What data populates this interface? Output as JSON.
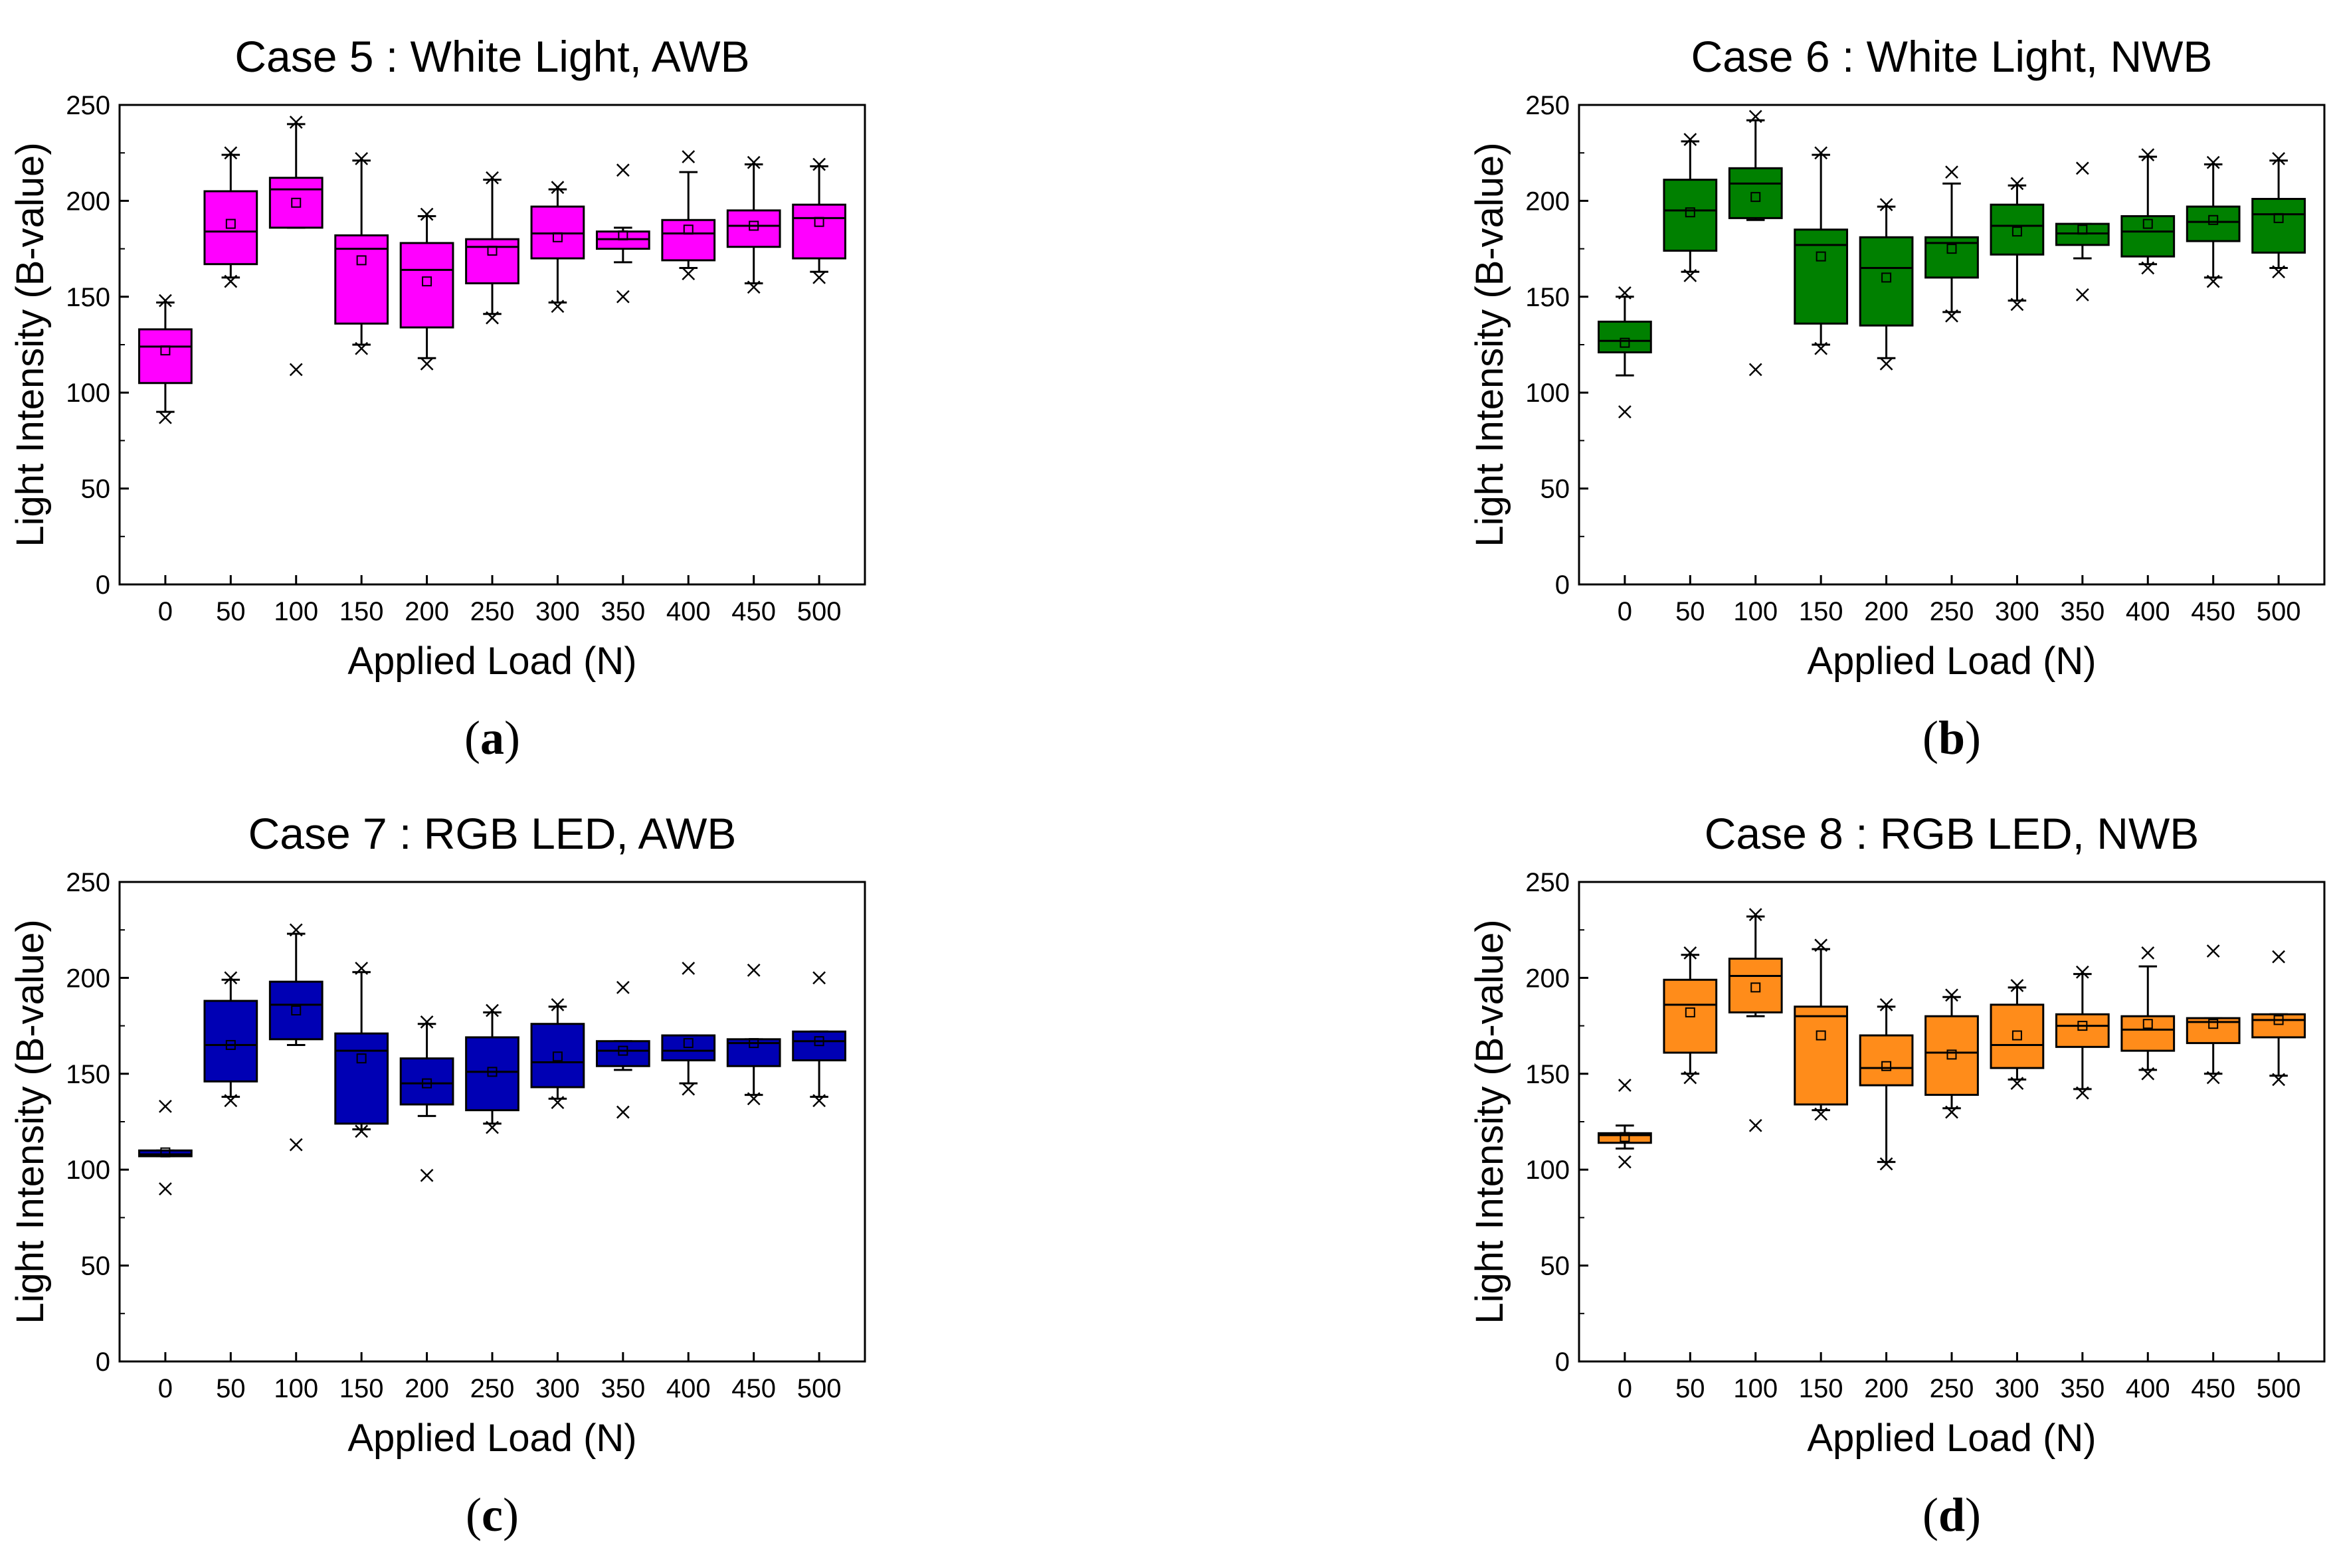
{
  "chart_data": [
    {
      "panel": "(a)",
      "panel_letter": "a",
      "type": "box",
      "title": "Case 5 : White Light, AWB",
      "xlabel": "Applied Load (N)",
      "ylabel": "Light Intensity (B-value)",
      "ylim": [
        0,
        250
      ],
      "yticks": [
        0,
        50,
        100,
        150,
        200,
        250
      ],
      "fill_color": "#ff00ff",
      "categories": [
        "0",
        "50",
        "100",
        "150",
        "200",
        "250",
        "300",
        "350",
        "400",
        "450",
        "500"
      ],
      "boxes": [
        {
          "x": "0",
          "q1": 105,
          "median": 124,
          "q3": 133,
          "mean": 122,
          "whisker_low": 90,
          "whisker_high": 147,
          "min": 87,
          "max": 148
        },
        {
          "x": "50",
          "q1": 167,
          "median": 184,
          "q3": 205,
          "mean": 188,
          "whisker_low": 160,
          "whisker_high": 224,
          "min": 158,
          "max": 225
        },
        {
          "x": "100",
          "q1": 186,
          "median": 206,
          "q3": 212,
          "mean": 199,
          "whisker_low": 186,
          "whisker_high": 240,
          "min": 112,
          "max": 241
        },
        {
          "x": "150",
          "q1": 136,
          "median": 175,
          "q3": 182,
          "mean": 169,
          "whisker_low": 125,
          "whisker_high": 221,
          "min": 123,
          "max": 222
        },
        {
          "x": "200",
          "q1": 134,
          "median": 164,
          "q3": 178,
          "mean": 158,
          "whisker_low": 118,
          "whisker_high": 192,
          "min": 115,
          "max": 193
        },
        {
          "x": "250",
          "q1": 157,
          "median": 176,
          "q3": 180,
          "mean": 174,
          "whisker_low": 141,
          "whisker_high": 211,
          "min": 139,
          "max": 212
        },
        {
          "x": "300",
          "q1": 170,
          "median": 183,
          "q3": 197,
          "mean": 181,
          "whisker_low": 147,
          "whisker_high": 206,
          "min": 145,
          "max": 207
        },
        {
          "x": "350",
          "q1": 175,
          "median": 180,
          "q3": 184,
          "mean": 182,
          "whisker_low": 168,
          "whisker_high": 186,
          "min": 150,
          "max": 216
        },
        {
          "x": "400",
          "q1": 169,
          "median": 183,
          "q3": 190,
          "mean": 185,
          "whisker_low": 165,
          "whisker_high": 215,
          "min": 162,
          "max": 223
        },
        {
          "x": "450",
          "q1": 176,
          "median": 187,
          "q3": 195,
          "mean": 187,
          "whisker_low": 157,
          "whisker_high": 219,
          "min": 155,
          "max": 220
        },
        {
          "x": "500",
          "q1": 170,
          "median": 191,
          "q3": 198,
          "mean": 189,
          "whisker_low": 163,
          "whisker_high": 218,
          "min": 160,
          "max": 219
        }
      ]
    },
    {
      "panel": "(b)",
      "panel_letter": "b",
      "type": "box",
      "title": "Case 6 : White Light, NWB",
      "xlabel": "Applied Load (N)",
      "ylabel": "Light Intensity (B-value)",
      "ylim": [
        0,
        250
      ],
      "yticks": [
        0,
        50,
        100,
        150,
        200,
        250
      ],
      "fill_color": "#008000",
      "categories": [
        "0",
        "50",
        "100",
        "150",
        "200",
        "250",
        "300",
        "350",
        "400",
        "450",
        "500"
      ],
      "boxes": [
        {
          "x": "0",
          "q1": 121,
          "median": 127,
          "q3": 137,
          "mean": 126,
          "whisker_low": 109,
          "whisker_high": 150,
          "min": 90,
          "max": 152
        },
        {
          "x": "50",
          "q1": 174,
          "median": 195,
          "q3": 211,
          "mean": 194,
          "whisker_low": 163,
          "whisker_high": 231,
          "min": 161,
          "max": 232
        },
        {
          "x": "100",
          "q1": 191,
          "median": 209,
          "q3": 217,
          "mean": 202,
          "whisker_low": 190,
          "whisker_high": 242,
          "min": 112,
          "max": 244
        },
        {
          "x": "150",
          "q1": 136,
          "median": 177,
          "q3": 185,
          "mean": 171,
          "whisker_low": 125,
          "whisker_high": 224,
          "min": 123,
          "max": 225
        },
        {
          "x": "200",
          "q1": 135,
          "median": 165,
          "q3": 181,
          "mean": 160,
          "whisker_low": 118,
          "whisker_high": 197,
          "min": 115,
          "max": 198
        },
        {
          "x": "250",
          "q1": 160,
          "median": 178,
          "q3": 181,
          "mean": 175,
          "whisker_low": 142,
          "whisker_high": 209,
          "min": 140,
          "max": 215
        },
        {
          "x": "300",
          "q1": 172,
          "median": 187,
          "q3": 198,
          "mean": 184,
          "whisker_low": 148,
          "whisker_high": 208,
          "min": 146,
          "max": 209
        },
        {
          "x": "350",
          "q1": 177,
          "median": 183,
          "q3": 188,
          "mean": 185,
          "whisker_low": 170,
          "whisker_high": 188,
          "min": 151,
          "max": 217
        },
        {
          "x": "400",
          "q1": 171,
          "median": 184,
          "q3": 192,
          "mean": 188,
          "whisker_low": 167,
          "whisker_high": 223,
          "min": 165,
          "max": 224
        },
        {
          "x": "450",
          "q1": 179,
          "median": 189,
          "q3": 197,
          "mean": 190,
          "whisker_low": 160,
          "whisker_high": 219,
          "min": 158,
          "max": 220
        },
        {
          "x": "500",
          "q1": 173,
          "median": 193,
          "q3": 201,
          "mean": 191,
          "whisker_low": 165,
          "whisker_high": 221,
          "min": 163,
          "max": 222
        }
      ]
    },
    {
      "panel": "(c)",
      "panel_letter": "c",
      "type": "box",
      "title": "Case 7 : RGB LED, AWB",
      "xlabel": "Applied Load (N)",
      "ylabel": "Light Intensity (B-value)",
      "ylim": [
        0,
        250
      ],
      "yticks": [
        0,
        50,
        100,
        150,
        200,
        250
      ],
      "fill_color": "#0000b4",
      "categories": [
        "0",
        "50",
        "100",
        "150",
        "200",
        "250",
        "300",
        "350",
        "400",
        "450",
        "500"
      ],
      "boxes": [
        {
          "x": "0",
          "q1": 107,
          "median": 108,
          "q3": 110,
          "mean": 109,
          "whisker_low": 107,
          "whisker_high": 110,
          "min": 90,
          "max": 133
        },
        {
          "x": "50",
          "q1": 146,
          "median": 165,
          "q3": 188,
          "mean": 165,
          "whisker_low": 138,
          "whisker_high": 199,
          "min": 136,
          "max": 200
        },
        {
          "x": "100",
          "q1": 168,
          "median": 186,
          "q3": 198,
          "mean": 183,
          "whisker_low": 165,
          "whisker_high": 223,
          "min": 113,
          "max": 225
        },
        {
          "x": "150",
          "q1": 124,
          "median": 162,
          "q3": 171,
          "mean": 158,
          "whisker_low": 121,
          "whisker_high": 203,
          "min": 120,
          "max": 205
        },
        {
          "x": "200",
          "q1": 134,
          "median": 145,
          "q3": 158,
          "mean": 145,
          "whisker_low": 128,
          "whisker_high": 176,
          "min": 97,
          "max": 177
        },
        {
          "x": "250",
          "q1": 131,
          "median": 151,
          "q3": 169,
          "mean": 151,
          "whisker_low": 124,
          "whisker_high": 182,
          "min": 122,
          "max": 183
        },
        {
          "x": "300",
          "q1": 143,
          "median": 156,
          "q3": 176,
          "mean": 159,
          "whisker_low": 137,
          "whisker_high": 185,
          "min": 135,
          "max": 186
        },
        {
          "x": "350",
          "q1": 154,
          "median": 162,
          "q3": 167,
          "mean": 162,
          "whisker_low": 152,
          "whisker_high": 167,
          "min": 130,
          "max": 195
        },
        {
          "x": "400",
          "q1": 157,
          "median": 162,
          "q3": 170,
          "mean": 166,
          "whisker_low": 145,
          "whisker_high": 170,
          "min": 142,
          "max": 205
        },
        {
          "x": "450",
          "q1": 154,
          "median": 166,
          "q3": 168,
          "mean": 166,
          "whisker_low": 139,
          "whisker_high": 168,
          "min": 137,
          "max": 204
        },
        {
          "x": "500",
          "q1": 157,
          "median": 167,
          "q3": 172,
          "mean": 167,
          "whisker_low": 138,
          "whisker_high": 172,
          "min": 136,
          "max": 200
        }
      ]
    },
    {
      "panel": "(d)",
      "panel_letter": "d",
      "type": "box",
      "title": "Case 8 : RGB LED, NWB",
      "xlabel": "Applied Load (N)",
      "ylabel": "Light Intensity (B-value)",
      "ylim": [
        0,
        250
      ],
      "yticks": [
        0,
        50,
        100,
        150,
        200,
        250
      ],
      "fill_color": "#ff8c1a",
      "categories": [
        "0",
        "50",
        "100",
        "150",
        "200",
        "250",
        "300",
        "350",
        "400",
        "450",
        "500"
      ],
      "boxes": [
        {
          "x": "0",
          "q1": 114,
          "median": 118,
          "q3": 119,
          "mean": 117,
          "whisker_low": 111,
          "whisker_high": 123,
          "min": 104,
          "max": 144
        },
        {
          "x": "50",
          "q1": 161,
          "median": 186,
          "q3": 199,
          "mean": 182,
          "whisker_low": 150,
          "whisker_high": 212,
          "min": 148,
          "max": 213
        },
        {
          "x": "100",
          "q1": 182,
          "median": 201,
          "q3": 210,
          "mean": 195,
          "whisker_low": 180,
          "whisker_high": 232,
          "min": 123,
          "max": 233
        },
        {
          "x": "150",
          "q1": 134,
          "median": 180,
          "q3": 185,
          "mean": 170,
          "whisker_low": 131,
          "whisker_high": 215,
          "min": 129,
          "max": 217
        },
        {
          "x": "200",
          "q1": 144,
          "median": 153,
          "q3": 170,
          "mean": 154,
          "whisker_low": 104,
          "whisker_high": 185,
          "min": 103,
          "max": 186
        },
        {
          "x": "250",
          "q1": 139,
          "median": 161,
          "q3": 180,
          "mean": 160,
          "whisker_low": 132,
          "whisker_high": 190,
          "min": 130,
          "max": 191
        },
        {
          "x": "300",
          "q1": 153,
          "median": 165,
          "q3": 186,
          "mean": 170,
          "whisker_low": 147,
          "whisker_high": 195,
          "min": 145,
          "max": 196
        },
        {
          "x": "350",
          "q1": 164,
          "median": 175,
          "q3": 181,
          "mean": 175,
          "whisker_low": 142,
          "whisker_high": 202,
          "min": 140,
          "max": 203
        },
        {
          "x": "400",
          "q1": 162,
          "median": 173,
          "q3": 180,
          "mean": 176,
          "whisker_low": 152,
          "whisker_high": 206,
          "min": 150,
          "max": 213
        },
        {
          "x": "450",
          "q1": 166,
          "median": 177,
          "q3": 179,
          "mean": 176,
          "whisker_low": 150,
          "whisker_high": 179,
          "min": 148,
          "max": 214
        },
        {
          "x": "500",
          "q1": 169,
          "median": 178,
          "q3": 181,
          "mean": 178,
          "whisker_low": 149,
          "whisker_high": 181,
          "min": 147,
          "max": 211
        }
      ]
    }
  ]
}
